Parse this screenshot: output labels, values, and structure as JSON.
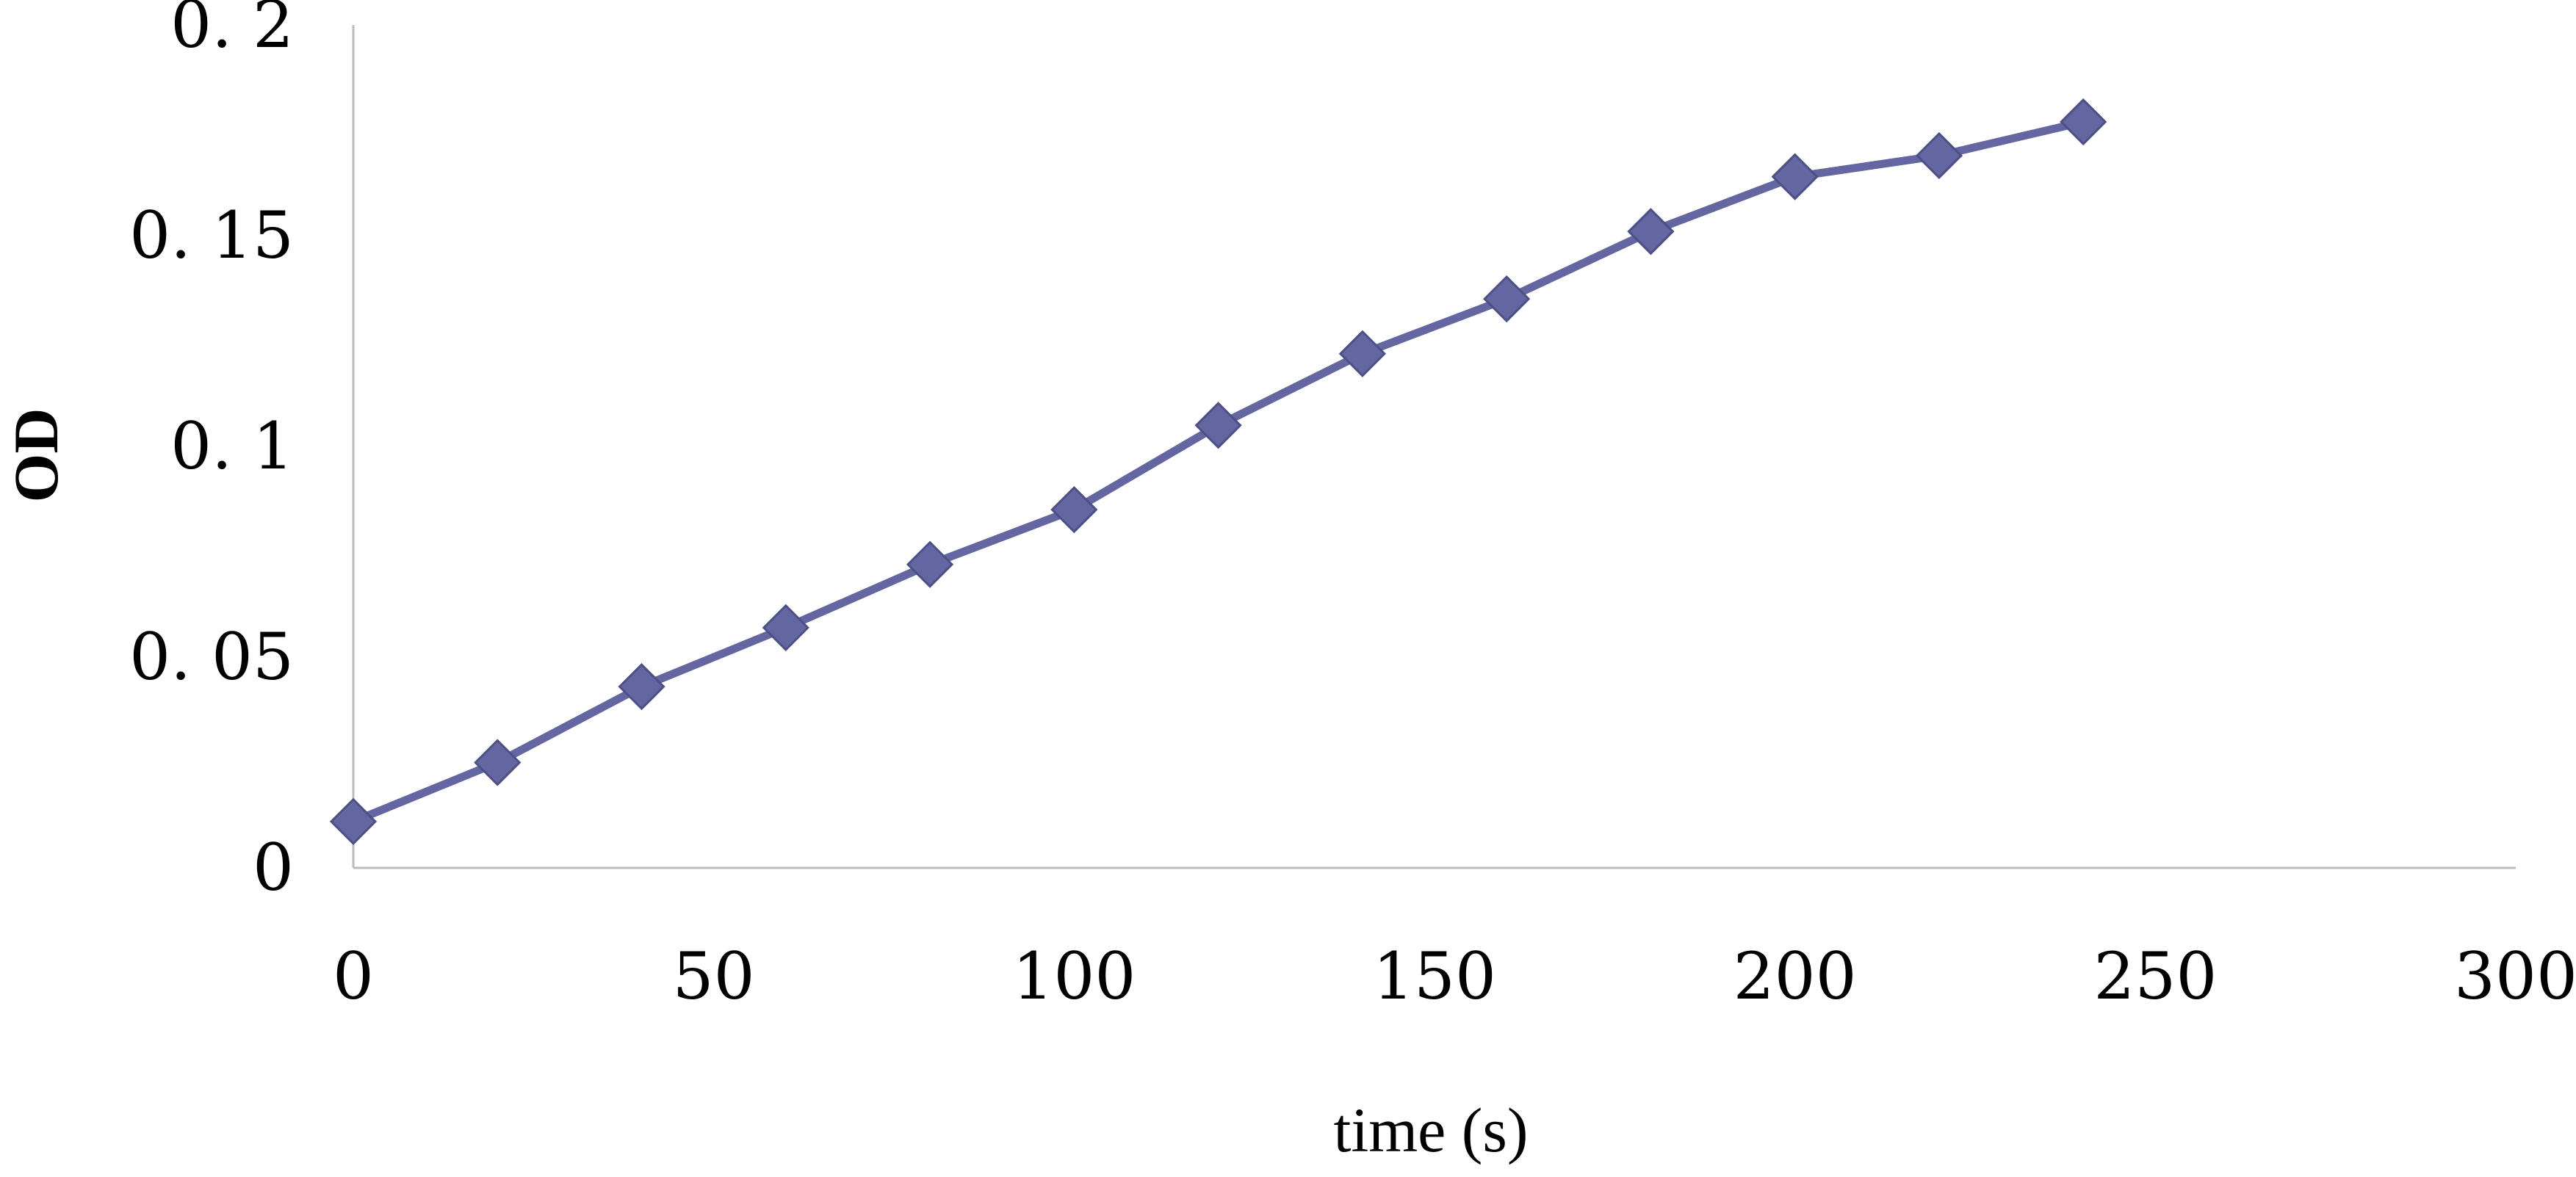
{
  "chart_data": {
    "type": "line",
    "title": "",
    "xlabel": "time (s)",
    "ylabel": "OD",
    "xlim": [
      0,
      300
    ],
    "ylim": [
      0,
      0.2
    ],
    "x_ticks": [
      0,
      50,
      100,
      150,
      200,
      250,
      300
    ],
    "y_ticks": [
      0,
      0.05,
      0.1,
      0.15,
      0.2
    ],
    "x_tick_labels": [
      "0",
      "50",
      "100",
      "150",
      "200",
      "250",
      "300"
    ],
    "y_tick_labels": [
      "0",
      "0. 05",
      "0. 1",
      "0. 15",
      "0. 2"
    ],
    "grid": false,
    "legend": "none",
    "marker": "diamond",
    "color": "#6366a0",
    "series": [
      {
        "x": [
          0,
          20,
          40,
          60,
          80,
          100,
          120,
          140,
          160,
          180,
          200,
          220,
          240
        ],
        "y": [
          0.011,
          0.025,
          0.043,
          0.057,
          0.072,
          0.085,
          0.105,
          0.122,
          0.135,
          0.151,
          0.164,
          0.169,
          0.177
        ]
      }
    ]
  }
}
